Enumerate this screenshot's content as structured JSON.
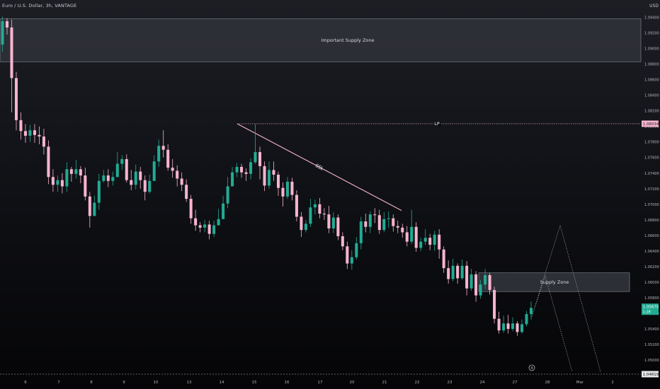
{
  "header": {
    "title": "Euro / U.S. Dollar, 3h, VANTAGE",
    "currency": "USD"
  },
  "colors": {
    "up": "#22ab94",
    "down": "#f7b5cf",
    "zone_fill": "#3a3c44",
    "zone_stroke": "#8a8d96",
    "line": "#f7b5cf",
    "price_label_bg": "#22ab94",
    "lp_label_bg": "#f7b5cf"
  },
  "chart_data": {
    "type": "candlestick",
    "ylim": [
      1.0481,
      1.0955
    ],
    "y_ticks": [
      "1.09400",
      "1.09200",
      "1.09000",
      "1.08800",
      "1.08600",
      "1.08400",
      "1.08200",
      "1.08000",
      "1.07800",
      "1.07600",
      "1.07400",
      "1.07200",
      "1.07000",
      "1.06800",
      "1.06600",
      "1.06400",
      "1.06200",
      "1.06000",
      "1.05800",
      "1.05600",
      "1.05400",
      "1.05200",
      "1.05000"
    ],
    "x_ticks": [
      "6",
      "7",
      "8",
      "9",
      "10",
      "13",
      "14",
      "15",
      "16",
      "17",
      "20",
      "21",
      "22",
      "23",
      "24",
      "27",
      "28",
      "Mar",
      "2"
    ],
    "current_price": "1.05675",
    "current_price_sub": "1:28",
    "lp_price": "1.08034",
    "bottom_price": "1.04819",
    "circle_marker": "4",
    "annotations": {
      "important_supply_zone": {
        "label": "Important Supply Zone",
        "top": 1.0938,
        "bottom": 1.0883
      },
      "supply_zone": {
        "label": "Supply Zone",
        "top": 1.0612,
        "bottom": 1.0588
      },
      "lp": {
        "label": "LP",
        "price": 1.08034
      },
      "ssl": {
        "label": "SSL",
        "from_price": 1.08034,
        "to_price": 1.0692
      }
    },
    "candles": [
      [
        1.0905,
        1.0935,
        1.0941,
        1.0896
      ],
      [
        1.0935,
        1.0927,
        1.0939,
        1.0918
      ],
      [
        1.0927,
        1.0862,
        1.0937,
        1.0818
      ],
      [
        1.0862,
        1.0808,
        1.087,
        1.0795
      ],
      [
        1.0808,
        1.0794,
        1.0818,
        1.0783
      ],
      [
        1.0794,
        1.0788,
        1.0803,
        1.0779
      ],
      [
        1.0788,
        1.0795,
        1.0802,
        1.078
      ],
      [
        1.0795,
        1.0789,
        1.0803,
        1.0779
      ],
      [
        1.0789,
        1.0787,
        1.08,
        1.0777
      ],
      [
        1.0787,
        1.0774,
        1.0797,
        1.0764
      ],
      [
        1.0774,
        1.0735,
        1.0782,
        1.0726
      ],
      [
        1.0735,
        1.0725,
        1.0745,
        1.0716
      ],
      [
        1.0725,
        1.0731,
        1.0737,
        1.0716
      ],
      [
        1.0731,
        1.0723,
        1.074,
        1.0714
      ],
      [
        1.0723,
        1.0745,
        1.0754,
        1.0716
      ],
      [
        1.0745,
        1.0739,
        1.0748,
        1.0729
      ],
      [
        1.0739,
        1.0745,
        1.0757,
        1.0733
      ],
      [
        1.0745,
        1.0737,
        1.0749,
        1.0727
      ],
      [
        1.0737,
        1.071,
        1.0747,
        1.0705
      ],
      [
        1.071,
        1.0685,
        1.0716,
        1.067
      ],
      [
        1.0685,
        1.0702,
        1.0711,
        1.0685
      ],
      [
        1.0702,
        1.073,
        1.0739,
        1.0693
      ],
      [
        1.073,
        1.0737,
        1.0744,
        1.0728
      ],
      [
        1.0737,
        1.073,
        1.0745,
        1.0722
      ],
      [
        1.073,
        1.0735,
        1.0742,
        1.0724
      ],
      [
        1.0735,
        1.0752,
        1.0767,
        1.0735
      ],
      [
        1.0752,
        1.0758,
        1.0763,
        1.0744
      ],
      [
        1.0758,
        1.0731,
        1.0764,
        1.0728
      ],
      [
        1.0731,
        1.0725,
        1.0744,
        1.0718
      ],
      [
        1.0725,
        1.0742,
        1.0751,
        1.0719
      ],
      [
        1.0742,
        1.0731,
        1.0748,
        1.072
      ],
      [
        1.0731,
        1.0716,
        1.0737,
        1.0705
      ],
      [
        1.0716,
        1.073,
        1.0738,
        1.0714
      ],
      [
        1.073,
        1.0755,
        1.0763,
        1.073
      ],
      [
        1.0755,
        1.0775,
        1.0783,
        1.0748
      ],
      [
        1.0775,
        1.077,
        1.0795,
        1.076
      ],
      [
        1.077,
        1.0747,
        1.0777,
        1.0743
      ],
      [
        1.0747,
        1.0743,
        1.0758,
        1.0734
      ],
      [
        1.0743,
        1.0733,
        1.075,
        1.0723
      ],
      [
        1.0733,
        1.0725,
        1.0741,
        1.0717
      ],
      [
        1.0725,
        1.0707,
        1.0732,
        1.0703
      ],
      [
        1.0707,
        1.0682,
        1.0712,
        1.0675
      ],
      [
        1.0682,
        1.0673,
        1.0693,
        1.0666
      ],
      [
        1.0673,
        1.067,
        1.0677,
        1.0664
      ],
      [
        1.067,
        1.0674,
        1.068,
        1.0664
      ],
      [
        1.0674,
        1.0662,
        1.0679,
        1.0655
      ],
      [
        1.0662,
        1.0673,
        1.0679,
        1.0658
      ],
      [
        1.0673,
        1.0681,
        1.0694,
        1.0673
      ],
      [
        1.0681,
        1.0701,
        1.0711,
        1.0681
      ],
      [
        1.0701,
        1.0723,
        1.0735,
        1.0695
      ],
      [
        1.0723,
        1.0741,
        1.0748,
        1.0723
      ],
      [
        1.0741,
        1.0748,
        1.0753,
        1.0735
      ],
      [
        1.0748,
        1.0741,
        1.0752,
        1.0734
      ],
      [
        1.0741,
        1.0739,
        1.0746,
        1.073
      ],
      [
        1.0739,
        1.0754,
        1.0759,
        1.0732
      ],
      [
        1.0754,
        1.0767,
        1.0803,
        1.0752
      ],
      [
        1.0767,
        1.0749,
        1.0774,
        1.0732
      ],
      [
        1.0749,
        1.0724,
        1.0755,
        1.0717
      ],
      [
        1.0724,
        1.0744,
        1.0755,
        1.072
      ],
      [
        1.0744,
        1.0738,
        1.0755,
        1.073
      ],
      [
        1.0738,
        1.0721,
        1.0742,
        1.0711
      ],
      [
        1.0721,
        1.071,
        1.0728,
        1.0697
      ],
      [
        1.071,
        1.0729,
        1.0735,
        1.0707
      ],
      [
        1.0729,
        1.0712,
        1.0734,
        1.0705
      ],
      [
        1.0712,
        1.0684,
        1.0718,
        1.0678
      ],
      [
        1.0684,
        1.0667,
        1.069,
        1.0658
      ],
      [
        1.0667,
        1.0675,
        1.068,
        1.0664
      ],
      [
        1.0675,
        1.0696,
        1.0707,
        1.0671
      ],
      [
        1.0696,
        1.07,
        1.0706,
        1.0687
      ],
      [
        1.07,
        1.0688,
        1.0708,
        1.0682
      ],
      [
        1.0688,
        1.0687,
        1.0695,
        1.068
      ],
      [
        1.0687,
        1.0669,
        1.0698,
        1.0663
      ],
      [
        1.0669,
        1.0683,
        1.069,
        1.0663
      ],
      [
        1.0683,
        1.0659,
        1.0687,
        1.0654
      ],
      [
        1.0659,
        1.0646,
        1.0664,
        1.0641
      ],
      [
        1.0646,
        1.0624,
        1.0652,
        1.0617
      ],
      [
        1.0624,
        1.0632,
        1.0641,
        1.0616
      ],
      [
        1.0632,
        1.065,
        1.0658,
        1.0629
      ],
      [
        1.065,
        1.0678,
        1.0684,
        1.0642
      ],
      [
        1.0678,
        1.0671,
        1.0688,
        1.0664
      ],
      [
        1.0671,
        1.0687,
        1.0691,
        1.0663
      ],
      [
        1.0687,
        1.0686,
        1.0695,
        1.0676
      ],
      [
        1.0686,
        1.0667,
        1.0693,
        1.0662
      ],
      [
        1.0667,
        1.0681,
        1.069,
        1.0664
      ],
      [
        1.0681,
        1.0682,
        1.0691,
        1.067
      ],
      [
        1.0682,
        1.0672,
        1.0687,
        1.0665
      ],
      [
        1.0672,
        1.067,
        1.0679,
        1.0663
      ],
      [
        1.067,
        1.0664,
        1.0675,
        1.0657
      ],
      [
        1.0664,
        1.0652,
        1.0672,
        1.0646
      ],
      [
        1.0652,
        1.0671,
        1.0693,
        1.0649
      ],
      [
        1.0671,
        1.0644,
        1.0677,
        1.0639
      ],
      [
        1.0644,
        1.0652,
        1.0657,
        1.064
      ],
      [
        1.0652,
        1.0657,
        1.0668,
        1.0648
      ],
      [
        1.0657,
        1.0648,
        1.0662,
        1.0641
      ],
      [
        1.0648,
        1.0661,
        1.0666,
        1.064
      ],
      [
        1.0661,
        1.0642,
        1.0668,
        1.063
      ],
      [
        1.0642,
        1.0618,
        1.0646,
        1.0612
      ],
      [
        1.0618,
        1.0604,
        1.0628,
        1.0598
      ],
      [
        1.0604,
        1.0621,
        1.063,
        1.0601
      ],
      [
        1.0621,
        1.0605,
        1.0624,
        1.0598
      ],
      [
        1.0605,
        1.0621,
        1.0629,
        1.0603
      ],
      [
        1.0621,
        1.0592,
        1.0627,
        1.0583
      ],
      [
        1.0592,
        1.061,
        1.0617,
        1.0589
      ],
      [
        1.061,
        1.0583,
        1.0614,
        1.0575
      ],
      [
        1.0583,
        1.0597,
        1.0603,
        1.0579
      ],
      [
        1.0597,
        1.0609,
        1.0617,
        1.0591
      ],
      [
        1.0609,
        1.059,
        1.0612,
        1.0584
      ],
      [
        1.059,
        1.0553,
        1.0594,
        1.0547
      ],
      [
        1.0553,
        1.0538,
        1.0562,
        1.0534
      ],
      [
        1.0538,
        1.0547,
        1.0557,
        1.0535
      ],
      [
        1.0547,
        1.054,
        1.0558,
        1.0534
      ],
      [
        1.054,
        1.0547,
        1.0555,
        1.0537
      ],
      [
        1.0547,
        1.0536,
        1.055,
        1.0531
      ],
      [
        1.0536,
        1.0546,
        1.0552,
        1.0534
      ],
      [
        1.0546,
        1.0559,
        1.0563,
        1.0543
      ],
      [
        1.0559,
        1.0567,
        1.0575,
        1.0552
      ]
    ]
  }
}
